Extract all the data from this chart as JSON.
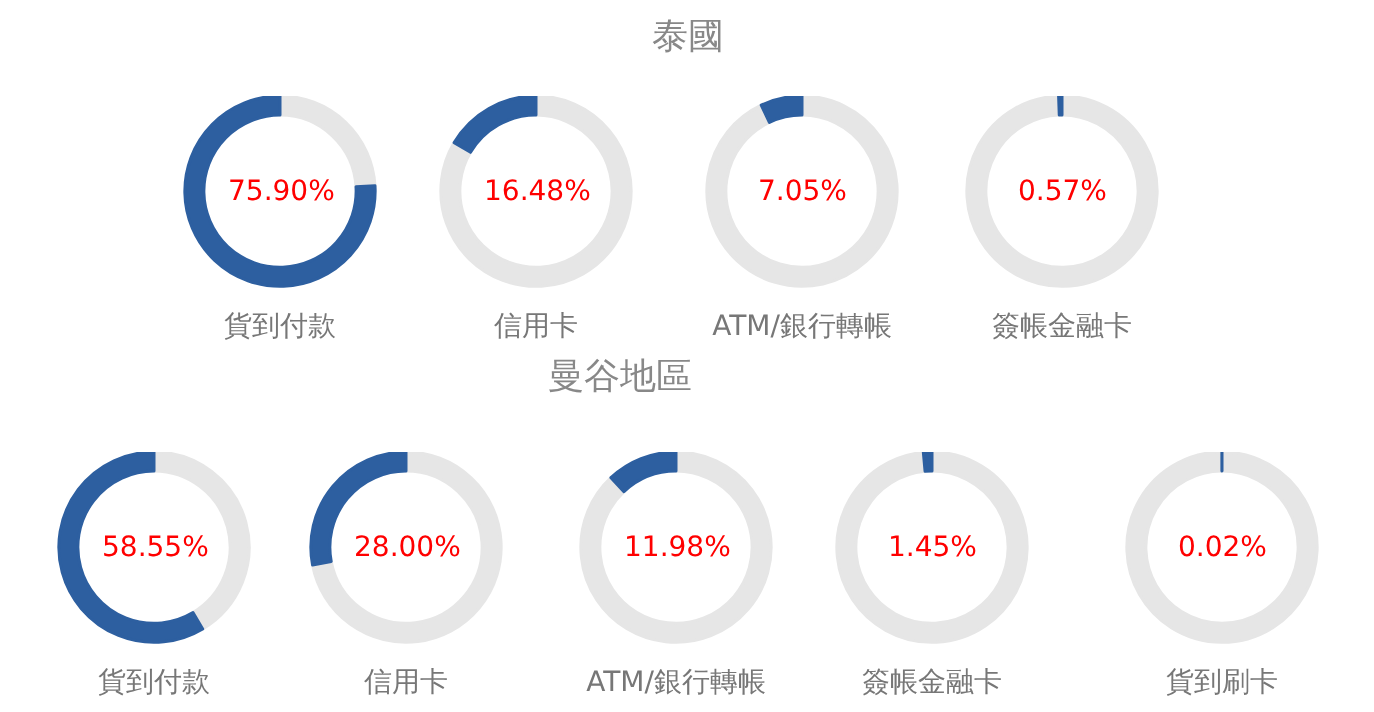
{
  "chart_data": [
    {
      "type": "other",
      "title": "泰國"
    },
    {
      "type": "donut",
      "title": "貨到付款",
      "categories": [
        null,
        null
      ],
      "values": [
        24.1,
        75.9
      ],
      "colors": [
        "#e6e6e6",
        "#2d5fa0"
      ],
      "annotations": [
        "75.90%"
      ]
    },
    {
      "type": "donut",
      "title": "信用卡",
      "categories": [
        null,
        null
      ],
      "values": [
        83.52,
        16.48
      ],
      "colors": [
        "#e6e6e6",
        "#2d5fa0"
      ],
      "annotations": [
        "16.48%"
      ]
    },
    {
      "type": "donut",
      "title": "ATM/銀行轉帳",
      "categories": [
        null,
        null
      ],
      "values": [
        92.95,
        7.05
      ],
      "colors": [
        "#e6e6e6",
        "#2d5fa0"
      ],
      "annotations": [
        "7.05%"
      ]
    },
    {
      "type": "donut",
      "title": "簽帳金融卡",
      "categories": [
        null,
        null
      ],
      "values": [
        99.43,
        0.57
      ],
      "colors": [
        "#e6e6e6",
        "#2d5fa0"
      ],
      "annotations": [
        "0.57%"
      ]
    },
    {
      "type": "other",
      "title": "曼谷地區"
    },
    {
      "type": "donut",
      "title": "貨到付款",
      "categories": [
        null,
        null
      ],
      "values": [
        41.45,
        58.55
      ],
      "colors": [
        "#e6e6e6",
        "#2d5fa0"
      ],
      "annotations": [
        "58.55%"
      ]
    },
    {
      "type": "donut",
      "title": "信用卡",
      "categories": [
        null,
        null
      ],
      "values": [
        72.0,
        28.0
      ],
      "colors": [
        "#e6e6e6",
        "#2d5fa0"
      ],
      "annotations": [
        "28.00%"
      ]
    },
    {
      "type": "donut",
      "title": "ATM/銀行轉帳",
      "categories": [
        null,
        null
      ],
      "values": [
        88.02,
        11.98
      ],
      "colors": [
        "#e6e6e6",
        "#2d5fa0"
      ],
      "annotations": [
        "11.98%"
      ]
    },
    {
      "type": "donut",
      "title": "簽帳金融卡",
      "categories": [
        null,
        null
      ],
      "values": [
        98.55,
        1.45
      ],
      "colors": [
        "#e6e6e6",
        "#2d5fa0"
      ],
      "annotations": [
        "1.45%"
      ]
    },
    {
      "type": "donut",
      "title": "貨到刷卡",
      "categories": [
        null,
        null
      ],
      "values": [
        99.98,
        0.02
      ],
      "colors": [
        "#e6e6e6",
        "#2d5fa0"
      ],
      "annotations": [
        "0.02%"
      ]
    }
  ]
}
